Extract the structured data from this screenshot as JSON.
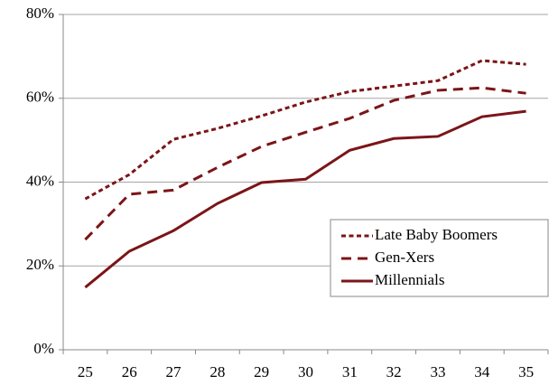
{
  "chart_data": {
    "type": "line",
    "categories": [
      "25",
      "26",
      "27",
      "28",
      "29",
      "30",
      "31",
      "32",
      "33",
      "34",
      "35"
    ],
    "series": [
      {
        "name": "Late Baby Boomers",
        "color": "#7b1518",
        "dash": "dotted",
        "values": [
          36.0,
          41.8,
          50.2,
          52.8,
          55.8,
          59.1,
          61.6,
          62.9,
          64.2,
          69.0,
          68.1
        ]
      },
      {
        "name": "Gen-Xers",
        "color": "#7b1518",
        "dash": "dashed",
        "values": [
          26.3,
          37.1,
          38.1,
          43.5,
          48.5,
          51.9,
          55.2,
          59.5,
          61.9,
          62.5,
          61.2
        ]
      },
      {
        "name": "Millennials",
        "color": "#7b1518",
        "dash": "solid",
        "values": [
          14.9,
          23.5,
          28.4,
          34.9,
          39.9,
          40.7,
          47.6,
          50.4,
          50.9,
          55.6,
          56.9
        ]
      }
    ],
    "ylim": [
      0,
      80
    ],
    "yticks": [
      {
        "value": 0,
        "label": "0%"
      },
      {
        "value": 20,
        "label": "20%"
      },
      {
        "value": 40,
        "label": "40%"
      },
      {
        "value": 60,
        "label": "60%"
      },
      {
        "value": 80,
        "label": "80%"
      }
    ],
    "grid": true,
    "legend": "right"
  }
}
